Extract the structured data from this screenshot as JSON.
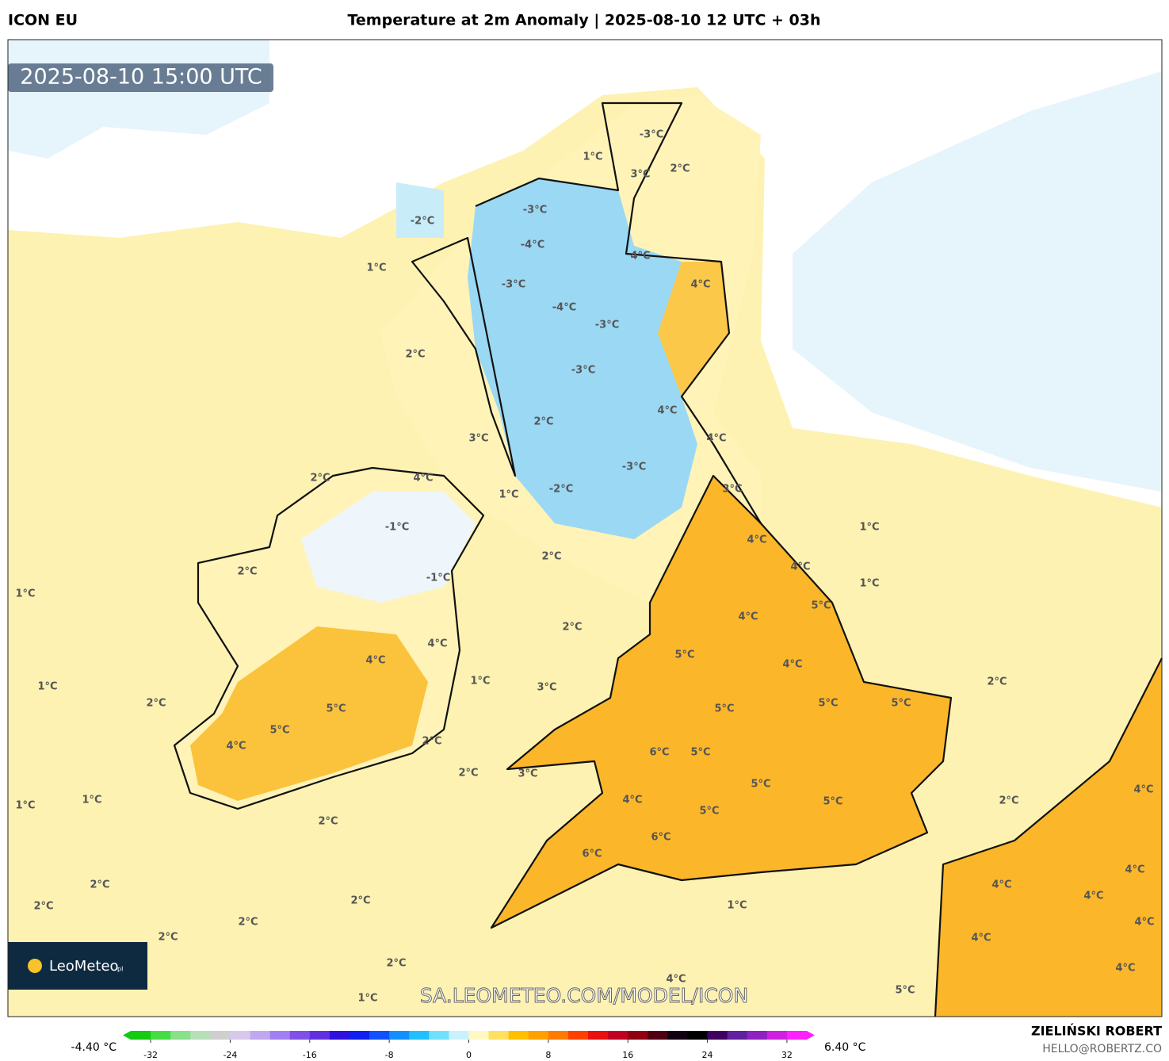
{
  "header": {
    "model": "ICON EU",
    "title": "Temperature at 2m Anomaly | 2025-08-10 12 UTC + 03h"
  },
  "map": {
    "timestamp": "2025-08-10 15:00 UTC",
    "watermark": "SA.LEOMETEO.COM/MODEL/ICON",
    "logo": "LeoMeteo",
    "logo_suffix": "pl",
    "labels": [
      "1°C",
      "-3°C",
      "3°C",
      "2°C",
      "-2°C",
      "-3°C",
      "-4°C",
      "4°C",
      "1°C",
      "-3°C",
      "4°C",
      "-4°C",
      "-3°C",
      "2°C",
      "-3°C",
      "4°C",
      "2°C",
      "4°C",
      "3°C",
      "-3°C",
      "2°C",
      "4°C",
      "-2°C",
      "3°C",
      "1°C",
      "-1°C",
      "1°C",
      "4°C",
      "2°C",
      "2°C",
      "4°C",
      "-1°C",
      "1°C",
      "1°C",
      "5°C",
      "4°C",
      "2°C",
      "4°C",
      "5°C",
      "4°C",
      "4°C",
      "1°C",
      "2°C",
      "1°C",
      "3°C",
      "2°C",
      "5°C",
      "5°C",
      "5°C",
      "5°C",
      "5°C",
      "2°C",
      "4°C",
      "6°C",
      "5°C",
      "3°C",
      "2°C",
      "5°C",
      "4°C",
      "1°C",
      "2°C",
      "1°C",
      "4°C",
      "5°C",
      "5°C",
      "2°C",
      "6°C",
      "6°C",
      "4°C",
      "2°C",
      "4°C",
      "4°C",
      "2°C",
      "1°C",
      "2°C",
      "2°C",
      "4°C",
      "2°C",
      "4°C",
      "2°C",
      "4°C",
      "4°C",
      "5°C",
      "1°C"
    ]
  },
  "colorbar": {
    "min_label": "-4.40 °C",
    "max_label": "6.40 °C",
    "xlim": [
      -34,
      34
    ],
    "ticks": [
      -32,
      -24,
      -16,
      -8,
      0,
      8,
      16,
      24,
      32
    ],
    "colors": [
      "#11cc11",
      "#44dd44",
      "#88e088",
      "#b8e0b8",
      "#cfcfcf",
      "#d8c8ec",
      "#c0a8f0",
      "#a080f0",
      "#8050e8",
      "#6030e0",
      "#3010e0",
      "#1020f0",
      "#1050ff",
      "#1090ff",
      "#20c0ff",
      "#70e0ff",
      "#c8f2ff",
      "#fff8c0",
      "#ffe060",
      "#ffc000",
      "#ffa000",
      "#ff7a00",
      "#ff4000",
      "#e81010",
      "#c00020",
      "#900010",
      "#500010",
      "#100010",
      "#000000",
      "#400060",
      "#6020a0",
      "#9020c0",
      "#d020e0",
      "#ff20ff"
    ]
  },
  "footer": {
    "author": "ZIELIŃSKI ROBERT",
    "email": "HELLO@ROBERTZ.CO"
  }
}
